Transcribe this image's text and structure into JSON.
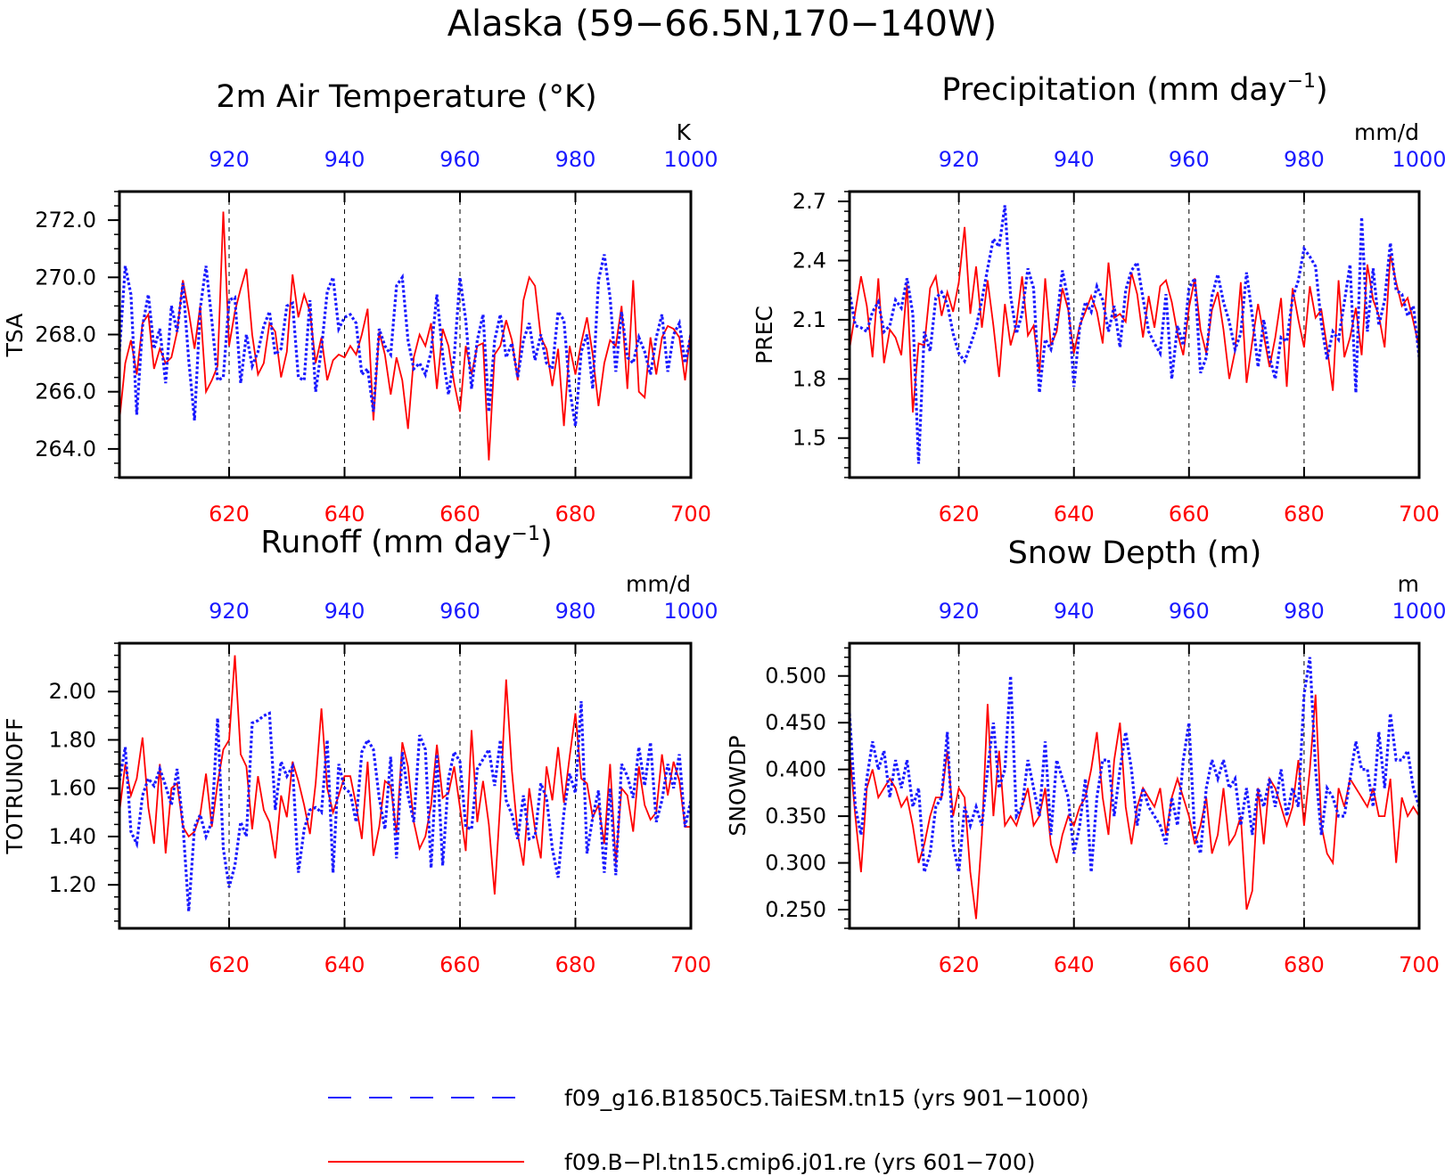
{
  "figure": {
    "title": "Alaska (59−66.5N,170−140W)",
    "colors": {
      "seriesA": "#1a1aff",
      "seriesB": "#ff0000",
      "axis": "#000000",
      "grid": "#000000"
    }
  },
  "legend": {
    "placement": "bottom-center",
    "items": [
      {
        "label": "f09_g16.B1850C5.TaiESM.tn15 (yrs 901−1000)",
        "style": "dashed",
        "color": "#1a1aff"
      },
      {
        "label": "f09.B−Pl.tn15.cmip6.j01.re (yrs 601−700)",
        "style": "solid",
        "color": "#ff0000"
      }
    ]
  },
  "chart_data": [
    {
      "type": "line",
      "title": "2m Air Temperature (°K)",
      "ylabel": "TSA",
      "units": "K",
      "ylim": [
        263,
        273
      ],
      "yticks": [
        264,
        266,
        268,
        270,
        272
      ],
      "ytick_labels": [
        "264.0",
        "266.0",
        "268.0",
        "270.0",
        "272.0"
      ],
      "minor_step": 0.5,
      "grid": "vertical dashed at major x ticks",
      "x_bottom": {
        "ticks": [
          620,
          640,
          660,
          680,
          700
        ],
        "range": [
          601,
          700
        ]
      },
      "x_top": {
        "ticks": [
          920,
          940,
          960,
          980,
          1000
        ],
        "range": [
          901,
          1000
        ]
      },
      "series": [
        {
          "axis": "bottom",
          "style": "solid",
          "values": [
            265.0,
            267.0,
            267.8,
            266.6,
            268.4,
            268.7,
            266.8,
            267.5,
            267.0,
            267.2,
            268.1,
            269.9,
            268.8,
            267.5,
            269.0,
            266.0,
            266.4,
            266.9,
            272.3,
            267.6,
            268.8,
            269.6,
            270.3,
            268.0,
            266.6,
            267.0,
            268.4,
            268.1,
            266.5,
            267.4,
            270.1,
            268.6,
            269.4,
            268.8,
            267.0,
            267.9,
            266.4,
            267.1,
            267.3,
            267.2,
            267.6,
            267.3,
            268.0,
            268.9,
            265.0,
            268.1,
            267.3,
            265.9,
            267.2,
            266.4,
            264.7,
            267.2,
            268.0,
            267.6,
            268.4,
            266.1,
            268.2,
            267.6,
            266.3,
            265.3,
            267.6,
            266.6,
            267.6,
            267.7,
            263.6,
            267.3,
            267.6,
            268.5,
            267.8,
            266.4,
            269.2,
            270.0,
            269.7,
            267.9,
            267.5,
            266.2,
            267.5,
            264.8,
            267.6,
            266.6,
            267.7,
            268.6,
            267.3,
            265.5,
            267.0,
            267.8,
            267.6,
            269.0,
            266.1,
            269.9,
            266.0,
            265.8,
            267.9,
            266.6,
            267.9,
            268.3,
            268.2,
            267.9,
            266.4,
            268.2
          ]
        },
        {
          "axis": "top",
          "style": "dashed",
          "values": [
            267.4,
            270.4,
            269.4,
            265.2,
            268.3,
            269.4,
            267.5,
            268.2,
            266.3,
            269.0,
            268.1,
            269.8,
            267.1,
            265.0,
            268.9,
            270.4,
            268.5,
            266.4,
            266.5,
            269.2,
            269.3,
            266.3,
            268.0,
            266.9,
            267.4,
            268.3,
            268.8,
            267.3,
            267.5,
            269.0,
            269.1,
            266.5,
            266.4,
            269.2,
            266.0,
            267.5,
            269.5,
            270.0,
            268.2,
            268.6,
            268.7,
            268.4,
            266.6,
            266.8,
            265.3,
            268.2,
            267.6,
            267.3,
            269.7,
            270.0,
            267.8,
            266.8,
            267.0,
            266.6,
            267.4,
            269.4,
            267.3,
            265.9,
            267.2,
            270.0,
            268.5,
            266.1,
            267.8,
            268.7,
            265.3,
            267.8,
            268.7,
            267.2,
            267.7,
            266.5,
            267.8,
            268.4,
            267.1,
            268.0,
            267.0,
            266.8,
            268.8,
            268.5,
            266.1,
            264.8,
            267.4,
            268.0,
            266.1,
            269.9,
            270.8,
            269.3,
            266.7,
            268.8,
            267.2,
            267.0,
            267.9,
            267.4,
            266.6,
            267.9,
            268.7,
            266.7,
            268.0,
            268.4,
            267.0,
            268.0
          ]
        }
      ]
    },
    {
      "type": "line",
      "title": "Precipitation (mm day⁻¹)",
      "ylabel": "PREC",
      "units": "mm/d",
      "ylim": [
        1.3,
        2.75
      ],
      "yticks": [
        1.5,
        1.8,
        2.1,
        2.4,
        2.7
      ],
      "ytick_labels": [
        "1.5",
        "1.8",
        "2.1",
        "2.4",
        "2.7"
      ],
      "minor_step": 0.05,
      "grid": "vertical dashed at major x ticks",
      "x_bottom": {
        "ticks": [
          620,
          640,
          660,
          680,
          700
        ],
        "range": [
          601,
          700
        ]
      },
      "x_top": {
        "ticks": [
          920,
          940,
          960,
          980,
          1000
        ],
        "range": [
          901,
          1000
        ]
      },
      "series": [
        {
          "axis": "bottom",
          "style": "solid",
          "values": [
            1.95,
            2.14,
            2.32,
            2.17,
            1.91,
            2.31,
            1.88,
            2.05,
            2.01,
            1.92,
            2.28,
            1.63,
            1.98,
            1.97,
            2.26,
            2.32,
            2.12,
            2.24,
            2.14,
            2.29,
            2.57,
            2.13,
            2.37,
            2.06,
            2.3,
            2.07,
            1.81,
            2.18,
            1.97,
            2.08,
            2.32,
            2.02,
            2.07,
            1.83,
            2.31,
            1.97,
            2.04,
            2.26,
            2.15,
            1.93,
            2.07,
            2.14,
            2.22,
            2.14,
            1.98,
            2.39,
            2.11,
            2.13,
            2.09,
            2.34,
            2.23,
            2.01,
            2.22,
            2.06,
            2.27,
            2.3,
            2.19,
            2.03,
            1.92,
            2.16,
            2.31,
            2.05,
            1.93,
            2.15,
            2.24,
            2.05,
            1.8,
            1.94,
            2.29,
            1.78,
            1.99,
            2.18,
            2.02,
            1.86,
            2.01,
            2.21,
            1.76,
            2.26,
            2.1,
            1.96,
            2.27,
            2.11,
            2.15,
            1.96,
            1.74,
            2.3,
            1.91,
            2.01,
            2.16,
            1.92,
            2.38,
            2.2,
            2.12,
            1.96,
            2.43,
            2.29,
            2.17,
            2.21,
            2.09,
            1.96
          ]
        },
        {
          "axis": "top",
          "style": "dashed",
          "values": [
            2.24,
            2.07,
            2.06,
            2.04,
            2.14,
            2.19,
            2.04,
            2.07,
            2.2,
            2.16,
            2.31,
            2.13,
            1.37,
            2.04,
            1.94,
            2.21,
            2.24,
            2.18,
            2.03,
            1.93,
            1.89,
            1.97,
            2.06,
            2.2,
            2.36,
            2.51,
            2.47,
            2.68,
            2.22,
            2.03,
            2.13,
            2.36,
            2.26,
            1.73,
            2.0,
            1.95,
            2.09,
            2.35,
            2.2,
            1.76,
            2.06,
            2.19,
            2.14,
            2.27,
            2.2,
            2.04,
            2.17,
            1.96,
            2.25,
            2.35,
            2.39,
            2.21,
            2.04,
            1.98,
            1.93,
            2.23,
            1.8,
            2.07,
            1.97,
            2.26,
            2.31,
            1.83,
            1.91,
            2.22,
            2.33,
            2.19,
            2.09,
            1.95,
            2.03,
            2.34,
            2.12,
            1.86,
            2.1,
            1.91,
            1.8,
            2.01,
            1.99,
            2.21,
            2.3,
            2.46,
            2.42,
            2.37,
            2.08,
            1.9,
            2.04,
            2.0,
            2.19,
            2.38,
            1.73,
            2.62,
            2.04,
            2.36,
            2.07,
            2.2,
            2.49,
            2.25,
            2.23,
            2.12,
            2.17,
            1.91
          ]
        }
      ]
    },
    {
      "type": "line",
      "title": "Runoff (mm day⁻¹)",
      "ylabel": "TOTRUNOFF",
      "units": "mm/d",
      "ylim": [
        1.02,
        2.2
      ],
      "yticks": [
        1.2,
        1.4,
        1.6,
        1.8,
        2.0
      ],
      "ytick_labels": [
        "1.20",
        "1.40",
        "1.60",
        "1.80",
        "2.00"
      ],
      "minor_step": 0.05,
      "grid": "vertical dashed at major x ticks",
      "x_bottom": {
        "ticks": [
          620,
          640,
          660,
          680,
          700
        ],
        "range": [
          601,
          700
        ]
      },
      "x_top": {
        "ticks": [
          920,
          940,
          960,
          980,
          1000
        ],
        "range": [
          901,
          1000
        ]
      },
      "series": [
        {
          "axis": "bottom",
          "style": "solid",
          "values": [
            1.5,
            1.7,
            1.57,
            1.64,
            1.81,
            1.52,
            1.37,
            1.7,
            1.33,
            1.6,
            1.62,
            1.44,
            1.4,
            1.42,
            1.49,
            1.66,
            1.44,
            1.62,
            1.76,
            1.8,
            2.15,
            1.74,
            1.69,
            1.43,
            1.65,
            1.51,
            1.46,
            1.31,
            1.57,
            1.48,
            1.71,
            1.63,
            1.53,
            1.41,
            1.62,
            1.93,
            1.6,
            1.5,
            1.57,
            1.65,
            1.65,
            1.53,
            1.39,
            1.71,
            1.32,
            1.44,
            1.63,
            1.61,
            1.41,
            1.79,
            1.69,
            1.46,
            1.35,
            1.4,
            1.53,
            1.78,
            1.56,
            1.58,
            1.69,
            1.52,
            1.34,
            1.84,
            1.46,
            1.63,
            1.45,
            1.16,
            1.55,
            2.05,
            1.67,
            1.41,
            1.28,
            1.6,
            1.43,
            1.31,
            1.69,
            1.55,
            1.77,
            1.54,
            1.73,
            1.91,
            1.64,
            1.62,
            1.48,
            1.53,
            1.37,
            1.7,
            1.29,
            1.6,
            1.57,
            1.42,
            1.69,
            1.53,
            1.47,
            1.5,
            1.74,
            1.57,
            1.71,
            1.63,
            1.44,
            1.44
          ]
        },
        {
          "axis": "top",
          "style": "dashed",
          "values": [
            1.63,
            1.77,
            1.42,
            1.37,
            1.57,
            1.64,
            1.61,
            1.68,
            1.61,
            1.53,
            1.68,
            1.45,
            1.09,
            1.44,
            1.49,
            1.4,
            1.46,
            1.89,
            1.35,
            1.19,
            1.28,
            1.46,
            1.4,
            1.87,
            1.88,
            1.9,
            1.91,
            1.51,
            1.71,
            1.65,
            1.69,
            1.25,
            1.43,
            1.51,
            1.52,
            1.5,
            1.8,
            1.25,
            1.7,
            1.6,
            1.58,
            1.46,
            1.75,
            1.8,
            1.76,
            1.56,
            1.43,
            1.73,
            1.31,
            1.75,
            1.57,
            1.46,
            1.82,
            1.76,
            1.27,
            1.74,
            1.28,
            1.64,
            1.75,
            1.71,
            1.44,
            1.43,
            1.68,
            1.72,
            1.76,
            1.61,
            1.8,
            1.55,
            1.49,
            1.39,
            1.57,
            1.39,
            1.4,
            1.62,
            1.56,
            1.35,
            1.23,
            1.5,
            1.66,
            1.58,
            1.96,
            1.33,
            1.48,
            1.59,
            1.25,
            1.6,
            1.24,
            1.7,
            1.65,
            1.56,
            1.77,
            1.61,
            1.79,
            1.46,
            1.55,
            1.7,
            1.6,
            1.74,
            1.44,
            1.55
          ]
        }
      ]
    },
    {
      "type": "line",
      "title": "Snow Depth (m)",
      "ylabel": "SNOWDP",
      "units": "m",
      "ylim": [
        0.23,
        0.535
      ],
      "yticks": [
        0.25,
        0.3,
        0.35,
        0.4,
        0.45,
        0.5
      ],
      "ytick_labels": [
        "0.250",
        "0.300",
        "0.350",
        "0.400",
        "0.450",
        "0.500"
      ],
      "minor_step": 0.01,
      "grid": "vertical dashed at major x ticks",
      "x_bottom": {
        "ticks": [
          620,
          640,
          660,
          680,
          700
        ],
        "range": [
          601,
          700
        ]
      },
      "x_top": {
        "ticks": [
          920,
          940,
          960,
          980,
          1000
        ],
        "range": [
          901,
          1000
        ]
      },
      "series": [
        {
          "axis": "bottom",
          "style": "solid",
          "values": [
            0.42,
            0.35,
            0.29,
            0.38,
            0.4,
            0.37,
            0.38,
            0.39,
            0.38,
            0.36,
            0.37,
            0.34,
            0.3,
            0.32,
            0.35,
            0.37,
            0.37,
            0.42,
            0.35,
            0.38,
            0.37,
            0.29,
            0.24,
            0.33,
            0.47,
            0.35,
            0.42,
            0.34,
            0.35,
            0.34,
            0.36,
            0.38,
            0.34,
            0.35,
            0.38,
            0.32,
            0.3,
            0.33,
            0.35,
            0.34,
            0.36,
            0.37,
            0.4,
            0.44,
            0.37,
            0.33,
            0.41,
            0.45,
            0.36,
            0.32,
            0.36,
            0.38,
            0.37,
            0.36,
            0.38,
            0.33,
            0.37,
            0.39,
            0.37,
            0.35,
            0.32,
            0.34,
            0.37,
            0.31,
            0.33,
            0.38,
            0.32,
            0.33,
            0.35,
            0.25,
            0.27,
            0.38,
            0.32,
            0.39,
            0.38,
            0.36,
            0.34,
            0.36,
            0.41,
            0.34,
            0.4,
            0.48,
            0.34,
            0.31,
            0.3,
            0.38,
            0.36,
            0.39,
            0.38,
            0.37,
            0.36,
            0.38,
            0.35,
            0.35,
            0.39,
            0.3,
            0.37,
            0.35,
            0.36,
            0.35
          ]
        },
        {
          "axis": "top",
          "style": "dashed",
          "values": [
            0.46,
            0.36,
            0.33,
            0.39,
            0.43,
            0.4,
            0.42,
            0.37,
            0.41,
            0.38,
            0.41,
            0.36,
            0.38,
            0.29,
            0.31,
            0.36,
            0.37,
            0.44,
            0.32,
            0.29,
            0.36,
            0.34,
            0.36,
            0.34,
            0.4,
            0.45,
            0.38,
            0.4,
            0.5,
            0.35,
            0.36,
            0.41,
            0.38,
            0.35,
            0.43,
            0.33,
            0.41,
            0.39,
            0.37,
            0.31,
            0.34,
            0.39,
            0.29,
            0.37,
            0.41,
            0.41,
            0.35,
            0.4,
            0.44,
            0.4,
            0.34,
            0.38,
            0.36,
            0.35,
            0.34,
            0.32,
            0.37,
            0.34,
            0.41,
            0.45,
            0.33,
            0.31,
            0.38,
            0.41,
            0.39,
            0.41,
            0.38,
            0.39,
            0.34,
            0.38,
            0.33,
            0.38,
            0.36,
            0.39,
            0.36,
            0.4,
            0.35,
            0.38,
            0.36,
            0.48,
            0.52,
            0.4,
            0.33,
            0.38,
            0.37,
            0.35,
            0.35,
            0.39,
            0.43,
            0.4,
            0.4,
            0.36,
            0.44,
            0.38,
            0.46,
            0.41,
            0.41,
            0.42,
            0.38,
            0.36
          ]
        }
      ]
    }
  ]
}
